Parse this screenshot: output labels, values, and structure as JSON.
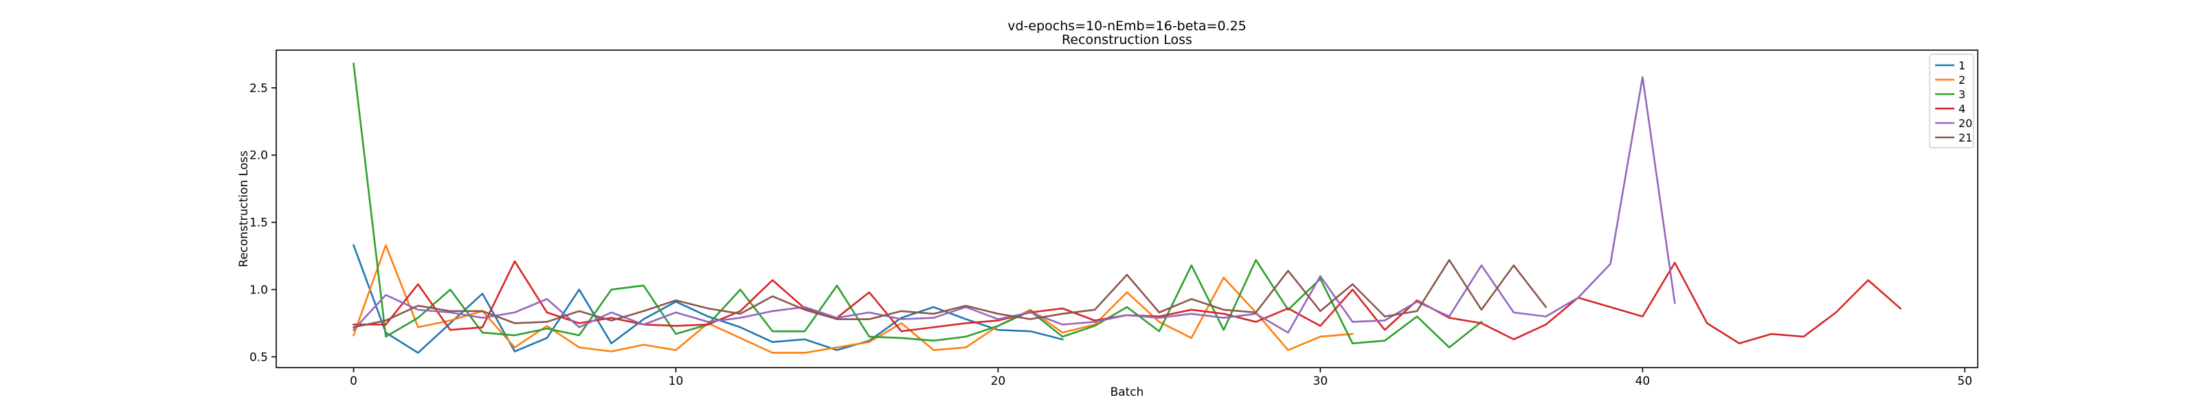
{
  "chart_data": {
    "type": "line",
    "title_line1": "vd-epochs=10-nEmb=16-beta=0.25",
    "title_line2": "Reconstruction Loss",
    "xlabel": "Batch",
    "ylabel": "Reconstruction Loss",
    "xlim": [
      -2.4,
      50.4
    ],
    "ylim": [
      0.42,
      2.78
    ],
    "xticks": [
      0,
      10,
      20,
      30,
      40,
      50
    ],
    "yticks": [
      0.5,
      1.0,
      1.5,
      2.0,
      2.5
    ],
    "ytick_labels": [
      "0.5",
      "1.0",
      "1.5",
      "2.0",
      "2.5"
    ],
    "grid": false,
    "legend_position": "top-right",
    "series": [
      {
        "name": "1",
        "color": "#1f77b4",
        "values": [
          1.33,
          0.68,
          0.53,
          0.75,
          0.97,
          0.54,
          0.64,
          1.0,
          0.6,
          0.78,
          0.91,
          0.8,
          0.72,
          0.61,
          0.63,
          0.55,
          0.62,
          0.79,
          0.87,
          0.78,
          0.7,
          0.69,
          0.63
        ]
      },
      {
        "name": "2",
        "color": "#ff7f0e",
        "values": [
          0.66,
          1.33,
          0.72,
          0.77,
          0.84,
          0.57,
          0.73,
          0.57,
          0.54,
          0.59,
          0.55,
          0.75,
          0.64,
          0.53,
          0.53,
          0.57,
          0.61,
          0.75,
          0.55,
          0.57,
          0.73,
          0.85,
          0.68,
          0.74,
          0.98,
          0.76,
          0.64,
          1.09,
          0.83,
          0.55,
          0.65,
          0.67
        ]
      },
      {
        "name": "3",
        "color": "#2ca02c",
        "values": [
          2.68,
          0.65,
          0.79,
          1.0,
          0.68,
          0.66,
          0.71,
          0.66,
          1.0,
          1.03,
          0.67,
          0.74,
          1.0,
          0.69,
          0.69,
          1.03,
          0.65,
          0.64,
          0.62,
          0.65,
          0.73,
          0.84,
          0.65,
          0.73,
          0.87,
          0.69,
          1.18,
          0.7,
          1.22,
          0.85,
          1.08,
          0.6,
          0.62,
          0.8,
          0.57,
          0.76
        ]
      },
      {
        "name": "4",
        "color": "#d62728",
        "values": [
          0.74,
          0.74,
          1.04,
          0.7,
          0.72,
          1.21,
          0.83,
          0.75,
          0.79,
          0.74,
          0.73,
          0.74,
          0.84,
          1.07,
          0.86,
          0.79,
          0.98,
          0.69,
          0.72,
          0.75,
          0.77,
          0.83,
          0.86,
          0.77,
          0.81,
          0.8,
          0.85,
          0.82,
          0.76,
          0.86,
          0.73,
          1.0,
          0.7,
          0.92,
          0.79,
          0.75,
          0.63,
          0.74,
          0.94,
          0.87,
          0.8,
          1.2,
          0.75,
          0.6,
          0.67,
          0.65,
          0.83,
          1.07,
          0.86
        ]
      },
      {
        "name": "20",
        "color": "#9467bd",
        "values": [
          0.7,
          0.96,
          0.85,
          0.83,
          0.79,
          0.83,
          0.93,
          0.72,
          0.83,
          0.74,
          0.83,
          0.76,
          0.79,
          0.84,
          0.87,
          0.79,
          0.83,
          0.78,
          0.79,
          0.87,
          0.78,
          0.83,
          0.74,
          0.76,
          0.81,
          0.79,
          0.82,
          0.79,
          0.82,
          0.68,
          1.1,
          0.76,
          0.77,
          0.91,
          0.8,
          1.18,
          0.83,
          0.8,
          0.94,
          1.19,
          2.58,
          0.9
        ]
      },
      {
        "name": "21",
        "color": "#8c564b",
        "values": [
          0.72,
          0.77,
          0.88,
          0.84,
          0.84,
          0.75,
          0.76,
          0.84,
          0.77,
          0.84,
          0.92,
          0.86,
          0.82,
          0.95,
          0.85,
          0.78,
          0.78,
          0.84,
          0.82,
          0.88,
          0.82,
          0.78,
          0.82,
          0.85,
          1.11,
          0.83,
          0.93,
          0.85,
          0.83,
          1.14,
          0.84,
          1.04,
          0.8,
          0.84,
          1.22,
          0.85,
          1.18,
          0.87
        ]
      }
    ]
  }
}
